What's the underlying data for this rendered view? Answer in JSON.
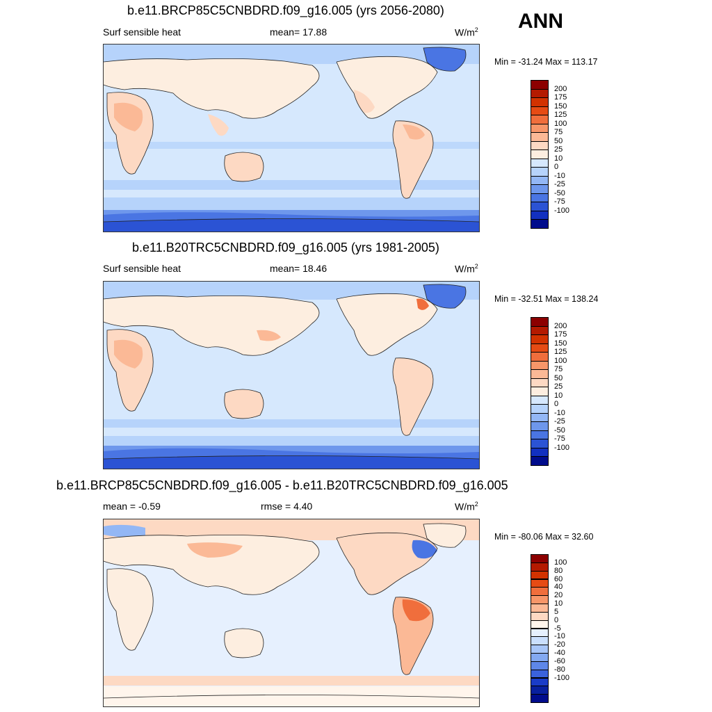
{
  "annual_label": "ANN",
  "panels": [
    {
      "title": "b.e11.BRCP85C5CNBDRD.f09_g16.005 (yrs 2056-2080)",
      "variable": "Surf sensible heat",
      "mean_label": "mean=",
      "mean_value": "17.88",
      "units_base": "W/m",
      "units_exp": "2",
      "min_max": "Min = -31.24 Max = 113.17",
      "colorbar": {
        "colors": [
          "#8c0000",
          "#b41a00",
          "#d23200",
          "#e64b14",
          "#f06e3c",
          "#f79669",
          "#fbb996",
          "#fdd9c3",
          "#fdeee0",
          "#d6e8fd",
          "#b6d3fb",
          "#93b7f5",
          "#6e97ec",
          "#4a75e3",
          "#2b53d4",
          "#1230c0",
          "#000c8c"
        ],
        "labels": [
          "200",
          "175",
          "150",
          "125",
          "100",
          "75",
          "50",
          "25",
          "10",
          "0",
          "-10",
          "-25",
          "-50",
          "-75",
          "-100"
        ]
      }
    },
    {
      "title": "b.e11.B20TRC5CNBDRD.f09_g16.005 (yrs 1981-2005)",
      "variable": "Surf sensible heat",
      "mean_label": "mean=",
      "mean_value": "18.46",
      "units_base": "W/m",
      "units_exp": "2",
      "min_max": "Min = -32.51 Max = 138.24",
      "colorbar": {
        "colors": [
          "#8c0000",
          "#b41a00",
          "#d23200",
          "#e64b14",
          "#f06e3c",
          "#f79669",
          "#fbb996",
          "#fdd9c3",
          "#fdeee0",
          "#d6e8fd",
          "#b6d3fb",
          "#93b7f5",
          "#6e97ec",
          "#4a75e3",
          "#2b53d4",
          "#1230c0",
          "#000c8c"
        ],
        "labels": [
          "200",
          "175",
          "150",
          "125",
          "100",
          "75",
          "50",
          "25",
          "10",
          "0",
          "-10",
          "-25",
          "-50",
          "-75",
          "-100"
        ]
      }
    },
    {
      "title": "b.e11.BRCP85C5CNBDRD.f09_g16.005 - b.e11.B20TRC5CNBDRD.f09_g16.005",
      "mean_label": "mean =",
      "mean_value": "-0.59",
      "rmse_label": "rmse =",
      "rmse_value": "4.40",
      "units_base": "W/m",
      "units_exp": "2",
      "min_max": "Min = -80.06 Max =  32.60",
      "colorbar": {
        "colors": [
          "#8c0000",
          "#b41a00",
          "#d23200",
          "#e64b14",
          "#f06e3c",
          "#f79669",
          "#fbb996",
          "#fdd9c3",
          "#fff5ec",
          "#e6f0fe",
          "#cadffd",
          "#a8c6f8",
          "#83a9f1",
          "#5e87e8",
          "#3a62dc",
          "#1a3cc8",
          "#08209e",
          "#000c8c"
        ],
        "labels": [
          "100",
          "80",
          "60",
          "40",
          "20",
          "10",
          "5",
          "0",
          "-5",
          "-10",
          "-20",
          "-40",
          "-60",
          "-80",
          "-100"
        ]
      }
    }
  ]
}
